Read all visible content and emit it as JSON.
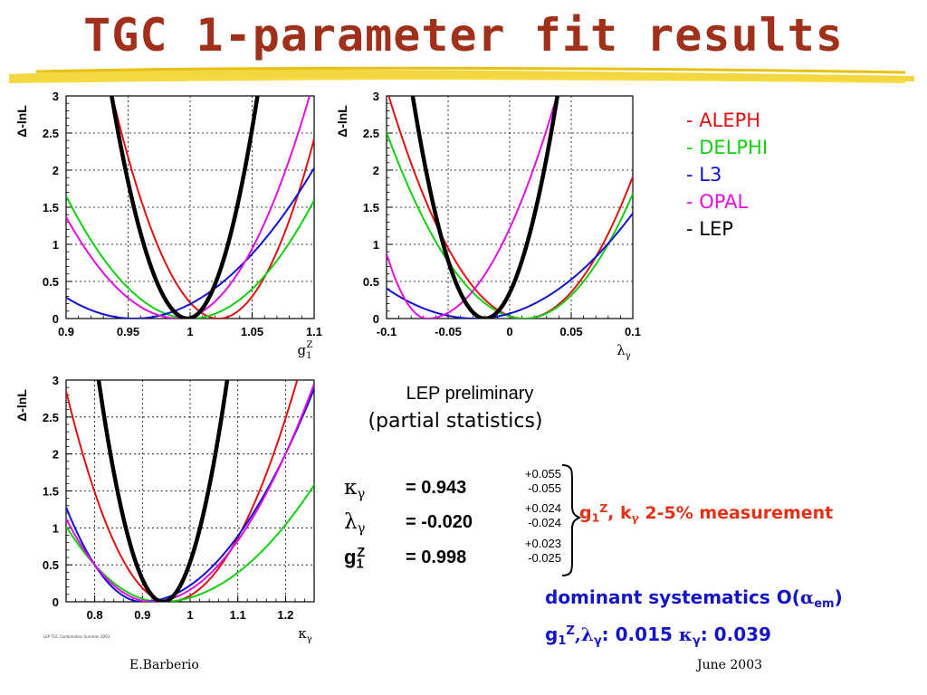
{
  "slide": {
    "title": "TGC 1-parameter fit results",
    "underline_color": "#f0d020",
    "lep_preliminary": "LEP preliminary",
    "partial_statistics": "(partial statistics)",
    "footer_left": "E.Barberio",
    "footer_right": "June 2003",
    "tiny_note": "LEP TGC Combination Summer 2003"
  },
  "legend": [
    {
      "label": "- ALEPH",
      "color": "#e01010"
    },
    {
      "label": "- DELPHI",
      "color": "#10d010"
    },
    {
      "label": "- L3",
      "color": "#1010d0"
    },
    {
      "label": "- OPAL",
      "color": "#e010e0"
    },
    {
      "label": "- LEP",
      "color": "#000000"
    }
  ],
  "results": [
    {
      "symbol": "κ",
      "sub": "γ",
      "sup": "",
      "value": "= 0.943",
      "err_up": "+0.055",
      "err_down": "-0.055"
    },
    {
      "symbol": "λ",
      "sub": "γ",
      "sup": "",
      "value": "= -0.020",
      "err_up": "+0.024",
      "err_down": "-0.024"
    },
    {
      "symbol": "g",
      "sub": "1",
      "sup": "Z",
      "value": "= 0.998",
      "err_up": "+0.023",
      "err_down": "-0.025"
    }
  ],
  "measurement": {
    "g": "g",
    "g_sub": "1",
    "g_sup": "Z",
    "mid": ", k",
    "k_sub": "γ",
    "rest": " 2-5% measurement"
  },
  "systematics": {
    "prefix": "dominant systematics O(",
    "alpha": "α",
    "alpha_sub": "em",
    "suffix": ")"
  },
  "syst_values": {
    "g": "g",
    "g_sub": "1",
    "g_sup": "Z",
    "lam": ",λ",
    "lam_sub": "γ",
    "mid": ": 0.015 ",
    "kap": "κ",
    "kap_sub": "γ",
    "end": ": 0.039"
  },
  "chart_data": [
    {
      "type": "line",
      "ylabel": "Δ-lnL",
      "xlabel": "g1Z",
      "xlabel_main": "g",
      "xlabel_sub": "1",
      "xlabel_sup": "Z",
      "xlim": [
        0.9,
        1.1
      ],
      "ylim": [
        0,
        3
      ],
      "xticks": [
        0.9,
        0.95,
        1,
        1.05,
        1.1
      ],
      "xtick_labels": [
        "0.9",
        "0.95",
        "1",
        "1.05",
        "1.1"
      ],
      "yticks": [
        0,
        0.5,
        1,
        1.5,
        2,
        2.5,
        3
      ],
      "ytick_labels": [
        "0",
        "0.5",
        "1",
        "1.5",
        "2",
        "2.5",
        "3"
      ],
      "grid": true,
      "series": [
        {
          "name": "ALEPH",
          "color": "#e01010",
          "min": 1.023,
          "sigma_minus": 0.035,
          "sigma_plus": 0.035
        },
        {
          "name": "DELPHI",
          "color": "#10d010",
          "min": 1.0,
          "sigma_minus": 0.055,
          "sigma_plus": 0.056
        },
        {
          "name": "L3",
          "color": "#1010d0",
          "min": 0.955,
          "sigma_minus": 0.073,
          "sigma_plus": 0.072
        },
        {
          "name": "OPAL",
          "color": "#e010e0",
          "min": 0.991,
          "sigma_minus": 0.055,
          "sigma_plus": 0.043
        },
        {
          "name": "LEP",
          "color": "#000000",
          "min": 0.998,
          "sigma_minus": 0.025,
          "sigma_plus": 0.023
        }
      ]
    },
    {
      "type": "line",
      "ylabel": "Δ-lnL",
      "xlabel": "λγ",
      "xlabel_main": "λ",
      "xlabel_sub": "γ",
      "xlabel_sup": "",
      "xlim": [
        -0.1,
        0.1
      ],
      "ylim": [
        0,
        3
      ],
      "xticks": [
        -0.1,
        -0.05,
        0,
        0.05,
        0.1
      ],
      "xtick_labels": [
        "-0.1",
        "-0.05",
        "0",
        "0.05",
        "0.1"
      ],
      "yticks": [
        0,
        0.5,
        1,
        1.5,
        2,
        2.5,
        3
      ],
      "ytick_labels": [
        "0",
        "0.5",
        "1",
        "1.5",
        "2",
        "2.5",
        "3"
      ],
      "grid": true,
      "series": [
        {
          "name": "ALEPH",
          "color": "#e01010",
          "min": 0.012,
          "sigma_minus": 0.045,
          "sigma_plus": 0.045
        },
        {
          "name": "DELPHI",
          "color": "#10d010",
          "min": 0.012,
          "sigma_minus": 0.05,
          "sigma_plus": 0.048
        },
        {
          "name": "L3",
          "color": "#1010d0",
          "min": -0.028,
          "sigma_minus": 0.08,
          "sigma_plus": 0.076
        },
        {
          "name": "OPAL",
          "color": "#e010e0",
          "min": -0.067,
          "sigma_minus": 0.025,
          "sigma_plus": 0.043
        },
        {
          "name": "LEP",
          "color": "#000000",
          "min": -0.02,
          "sigma_minus": 0.024,
          "sigma_plus": 0.024
        }
      ]
    },
    {
      "type": "line",
      "ylabel": "Δ-lnL",
      "xlabel": "κγ",
      "xlabel_main": "κ",
      "xlabel_sub": "γ",
      "xlabel_sup": "",
      "xlim": [
        0.74,
        1.26
      ],
      "ylim": [
        0,
        3
      ],
      "xticks": [
        0.8,
        0.9,
        1,
        1.1,
        1.2
      ],
      "xtick_labels": [
        "0.8",
        "0.9",
        "1",
        "1.1",
        "1.2"
      ],
      "yticks": [
        0,
        0.5,
        1,
        1.5,
        2,
        2.5,
        3
      ],
      "ytick_labels": [
        "0",
        "0.5",
        "1",
        "1.5",
        "2",
        "2.5",
        "3"
      ],
      "grid": true,
      "series": [
        {
          "name": "ALEPH",
          "color": "#e01010",
          "min": 0.955,
          "sigma_minus": 0.09,
          "sigma_plus": 0.11
        },
        {
          "name": "DELPHI",
          "color": "#10d010",
          "min": 0.94,
          "sigma_minus": 0.14,
          "sigma_plus": 0.18
        },
        {
          "name": "L3",
          "color": "#1010d0",
          "min": 0.9,
          "sigma_minus": 0.1,
          "sigma_plus": 0.15
        },
        {
          "name": "OPAL",
          "color": "#e010e0",
          "min": 0.92,
          "sigma_minus": 0.12,
          "sigma_plus": 0.14
        },
        {
          "name": "LEP",
          "color": "#000000",
          "min": 0.943,
          "sigma_minus": 0.055,
          "sigma_plus": 0.055
        }
      ]
    }
  ]
}
